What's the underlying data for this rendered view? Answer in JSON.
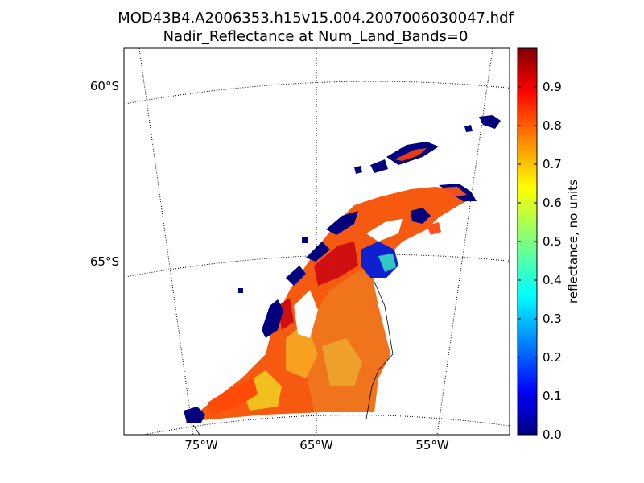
{
  "title": {
    "line1": "MOD43B4.A2006353.h15v15.004.2007006030047.hdf",
    "line2": "Nadir_Reflectance at Num_Land_Bands=0"
  },
  "map": {
    "lat_labels": [
      "60°S",
      "65°S"
    ],
    "lon_labels": [
      "75°W",
      "65°W",
      "55°W"
    ]
  },
  "colorbar": {
    "label": "reflectance, no units",
    "range": [
      0.0,
      1.0
    ],
    "ticks": [
      "0.0",
      "0.1",
      "0.2",
      "0.3",
      "0.4",
      "0.5",
      "0.6",
      "0.7",
      "0.8",
      "0.9"
    ],
    "colormap": [
      "#00007f",
      "#0000ff",
      "#007fff",
      "#00ffff",
      "#7fff7f",
      "#ffff00",
      "#ff7f00",
      "#ff0000",
      "#7f0000"
    ]
  }
}
